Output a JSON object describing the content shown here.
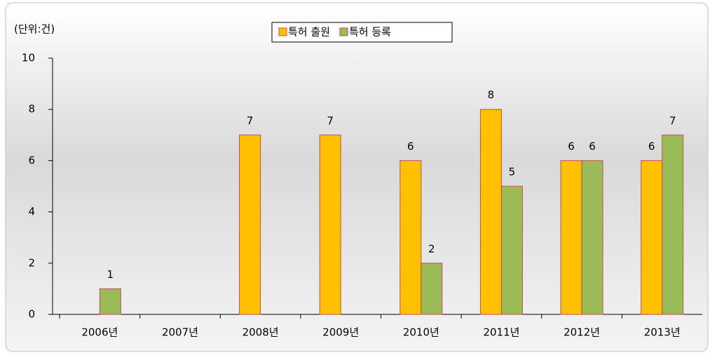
{
  "chart_data": {
    "type": "bar",
    "annotation": "(단위:건)",
    "categories": [
      "2006년",
      "2007년",
      "2008년",
      "2009년",
      "2010년",
      "2011년",
      "2012년",
      "2013년"
    ],
    "series": [
      {
        "name": "특허 출원",
        "color": "#ffc000",
        "values": [
          null,
          null,
          7,
          7,
          6,
          8,
          6,
          6
        ]
      },
      {
        "name": "특허 등록",
        "color": "#9bbb59",
        "values": [
          1,
          null,
          null,
          null,
          2,
          5,
          6,
          7
        ]
      }
    ],
    "ylim": [
      0,
      10
    ],
    "yticks": [
      0,
      2,
      4,
      6,
      8,
      10
    ],
    "legend": "top"
  }
}
